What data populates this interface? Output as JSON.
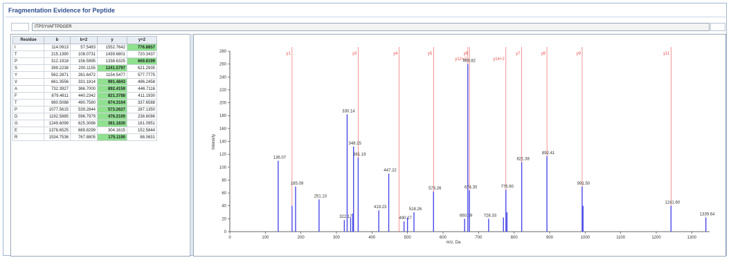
{
  "window": {
    "title": "Fragmentation Evidence for Peptide"
  },
  "peptide": {
    "sequence": "ITPSYVAFTPDGER"
  },
  "table": {
    "headers": [
      "Residue",
      "b",
      "b+2",
      "y",
      "y+2"
    ],
    "rows": [
      {
        "residue": "I",
        "b": "114.0913",
        "b2": "57.5493",
        "y": "1552.7642",
        "y2": "776.8857",
        "hl": [
          false,
          false,
          false,
          false,
          true
        ]
      },
      {
        "residue": "T",
        "b": "215.1390",
        "b2": "108.0731",
        "y": "1439.6801",
        "y2": "720.3437",
        "hl": [
          false,
          false,
          false,
          false,
          false
        ]
      },
      {
        "residue": "P",
        "b": "312.1918",
        "b2": "156.5995",
        "y": "1338.6325",
        "y2": "669.8199",
        "hl": [
          false,
          false,
          false,
          false,
          true
        ]
      },
      {
        "residue": "S",
        "b": "399.2238",
        "b2": "200.1155",
        "y": "1241.5797",
        "y2": "621.2935",
        "hl": [
          false,
          false,
          false,
          true,
          false
        ]
      },
      {
        "residue": "Y",
        "b": "562.2871",
        "b2": "281.6472",
        "y": "1154.5477",
        "y2": "577.7775",
        "hl": [
          false,
          false,
          false,
          false,
          false
        ]
      },
      {
        "residue": "V",
        "b": "661.3556",
        "b2": "331.1814",
        "y": "991.4843",
        "y2": "496.2458",
        "hl": [
          false,
          false,
          false,
          true,
          false
        ]
      },
      {
        "residue": "A",
        "b": "732.3927",
        "b2": "366.7000",
        "y": "892.4159",
        "y2": "446.7116",
        "hl": [
          false,
          false,
          false,
          true,
          false
        ]
      },
      {
        "residue": "F",
        "b": "879.4611",
        "b2": "440.2342",
        "y": "821.3788",
        "y2": "411.1930",
        "hl": [
          false,
          false,
          false,
          true,
          false
        ]
      },
      {
        "residue": "T",
        "b": "980.5088",
        "b2": "490.7580",
        "y": "674.3104",
        "y2": "337.6588",
        "hl": [
          false,
          false,
          false,
          true,
          false
        ]
      },
      {
        "residue": "P",
        "b": "1077.5615",
        "b2": "539.2844",
        "y": "573.2627",
        "y2": "287.1350",
        "hl": [
          false,
          false,
          false,
          true,
          false
        ]
      },
      {
        "residue": "D",
        "b": "1192.5885",
        "b2": "596.7979",
        "y": "476.2100",
        "y2": "238.6086",
        "hl": [
          false,
          false,
          false,
          true,
          false
        ]
      },
      {
        "residue": "G",
        "b": "1249.6099",
        "b2": "625.3086",
        "y": "361.1830",
        "y2": "181.0951",
        "hl": [
          false,
          false,
          false,
          true,
          false
        ]
      },
      {
        "residue": "E",
        "b": "1378.6525",
        "b2": "689.8299",
        "y": "304.1615",
        "y2": "152.5844",
        "hl": [
          false,
          false,
          false,
          false,
          false
        ]
      },
      {
        "residue": "R",
        "b": "1534.7536",
        "b2": "767.8805",
        "y": "175.1190",
        "y2": "88.0631",
        "hl": [
          false,
          false,
          false,
          true,
          false
        ]
      }
    ]
  },
  "chart_data": {
    "type": "bar",
    "xlabel": "m/z, Da",
    "ylabel": "Intensity",
    "xlim": [
      0,
      1350
    ],
    "ylim": [
      0,
      280
    ],
    "xticks": [
      0,
      100,
      200,
      300,
      400,
      500,
      600,
      700,
      800,
      900,
      1000,
      1100,
      1200,
      1300
    ],
    "yticks": [
      0,
      20,
      40,
      60,
      80,
      100,
      120,
      140,
      160,
      180,
      200,
      220,
      240,
      260,
      280
    ],
    "grid": false,
    "peaks": [
      {
        "mz": 136.07,
        "intensity": 110,
        "label": "136.07"
      },
      {
        "mz": 175.12,
        "intensity": 40,
        "label": ""
      },
      {
        "mz": 185.09,
        "intensity": 70,
        "label": "185.09"
      },
      {
        "mz": 251.1,
        "intensity": 50,
        "label": "251.10"
      },
      {
        "mz": 322.17,
        "intensity": 18,
        "label": "322.17"
      },
      {
        "mz": 330.14,
        "intensity": 182,
        "label": "330.14"
      },
      {
        "mz": 340.0,
        "intensity": 22,
        "label": ""
      },
      {
        "mz": 346.0,
        "intensity": 28,
        "label": ""
      },
      {
        "mz": 348.15,
        "intensity": 132,
        "label": "348.15"
      },
      {
        "mz": 361.19,
        "intensity": 115,
        "label": "361.19"
      },
      {
        "mz": 419.23,
        "intensity": 33,
        "label": "419.23"
      },
      {
        "mz": 447.22,
        "intensity": 90,
        "label": "447.22"
      },
      {
        "mz": 490.27,
        "intensity": 16,
        "label": "490.27"
      },
      {
        "mz": 500.0,
        "intensity": 22,
        "label": ""
      },
      {
        "mz": 518.26,
        "intensity": 30,
        "label": "518.26"
      },
      {
        "mz": 573.26,
        "intensity": 62,
        "label": "573.26"
      },
      {
        "mz": 660.79,
        "intensity": 20,
        "label": "660.79"
      },
      {
        "mz": 669.82,
        "intensity": 260,
        "label": "669.82"
      },
      {
        "mz": 674.3,
        "intensity": 64,
        "label": "674.30"
      },
      {
        "mz": 728.33,
        "intensity": 20,
        "label": "728.33"
      },
      {
        "mz": 770.0,
        "intensity": 22,
        "label": ""
      },
      {
        "mz": 776.9,
        "intensity": 65,
        "label": "776.90"
      },
      {
        "mz": 780.0,
        "intensity": 30,
        "label": ""
      },
      {
        "mz": 821.38,
        "intensity": 108,
        "label": "821.38"
      },
      {
        "mz": 892.41,
        "intensity": 117,
        "label": "892.41"
      },
      {
        "mz": 991.5,
        "intensity": 70,
        "label": "991.50"
      },
      {
        "mz": 994.0,
        "intensity": 40,
        "label": ""
      },
      {
        "mz": 1241.6,
        "intensity": 40,
        "label": "1241.60"
      },
      {
        "mz": 1339.64,
        "intensity": 22,
        "label": "1339.64"
      }
    ],
    "annotations": [
      {
        "mz": 175.12,
        "label": "y1"
      },
      {
        "mz": 361.18,
        "label": "y3"
      },
      {
        "mz": 476.21,
        "label": "y4"
      },
      {
        "mz": 573.26,
        "label": "y5"
      },
      {
        "mz": 669.82,
        "label": "y12+2"
      },
      {
        "mz": 674.31,
        "label": "y6"
      },
      {
        "mz": 776.89,
        "label": "y14+2"
      },
      {
        "mz": 821.38,
        "label": "y7"
      },
      {
        "mz": 892.42,
        "label": "y8"
      },
      {
        "mz": 991.48,
        "label": "y9"
      },
      {
        "mz": 1241.58,
        "label": "y11"
      }
    ],
    "colors": {
      "peak": "#4848e8",
      "annotation": "#e85050",
      "axis": "#333333"
    }
  }
}
